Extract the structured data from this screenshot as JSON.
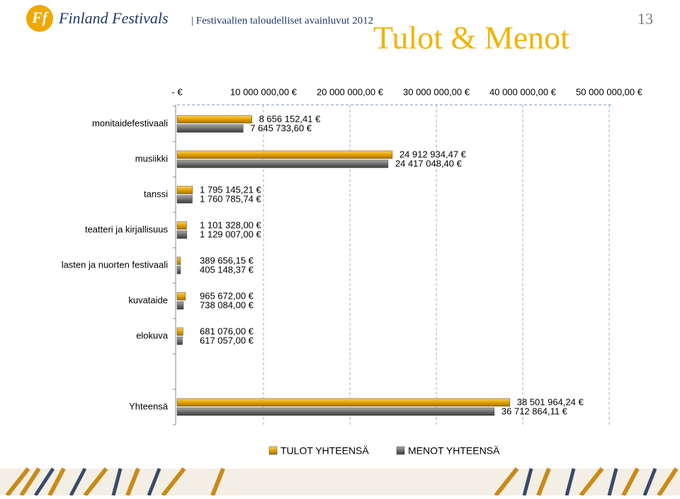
{
  "header": {
    "logo_mark": "Ff",
    "logo_text": "Finland Festivals",
    "subtitle": "| Festivaalien taloudelliset avainluvut 2012",
    "page_number": "13"
  },
  "chart_data": {
    "type": "hbar",
    "title": "Tulot & Menot",
    "categories": [
      "monitaidefestivaali",
      "musiikki",
      "tanssi",
      "teatteri ja kirjallisuus",
      "lasten ja nuorten festivaali",
      "kuvataide",
      "elokuva",
      null,
      "Yhteensä"
    ],
    "series": [
      {
        "name": "TULOT YHTEENSÄ",
        "color": "#e3a100",
        "values": [
          8656152.41,
          24912934.47,
          1795145.21,
          1101328.0,
          389656.15,
          965672.0,
          681076.0,
          null,
          38501964.24
        ],
        "value_labels": [
          "8 656 152,41 €",
          "24 912 934,47 €",
          "1 795 145,21 €",
          "1 101 328,00 €",
          "389 656,15 €",
          "965 672,00 €",
          "681 076,00 €",
          null,
          "38 501 964,24 €"
        ]
      },
      {
        "name": "MENOT YHTEENSÄ",
        "color": "#6e6e6e",
        "values": [
          7645733.6,
          24417048.4,
          1760785.74,
          1129007.0,
          405148.37,
          738084.0,
          617057.0,
          null,
          36712864.11
        ],
        "value_labels": [
          "7 645 733,60 €",
          "24 417 048,40 €",
          "1 760 785,74 €",
          "1 129 007,00 €",
          "405 148,37 €",
          "738 084,00 €",
          "617 057,00 €",
          null,
          "36 712 864,11 €"
        ]
      }
    ],
    "xlim": [
      0,
      50000000
    ],
    "xticks": [
      {
        "value": 0,
        "label": "-  €"
      },
      {
        "value": 10000000,
        "label": "10 000 000,00 €"
      },
      {
        "value": 20000000,
        "label": "20 000 000,00 €"
      },
      {
        "value": 30000000,
        "label": "30 000 000,00 €"
      },
      {
        "value": 40000000,
        "label": "40 000 000,00 €"
      },
      {
        "value": 50000000,
        "label": "50 000 000,00 €"
      }
    ],
    "grid": true,
    "legend": "bottom"
  }
}
